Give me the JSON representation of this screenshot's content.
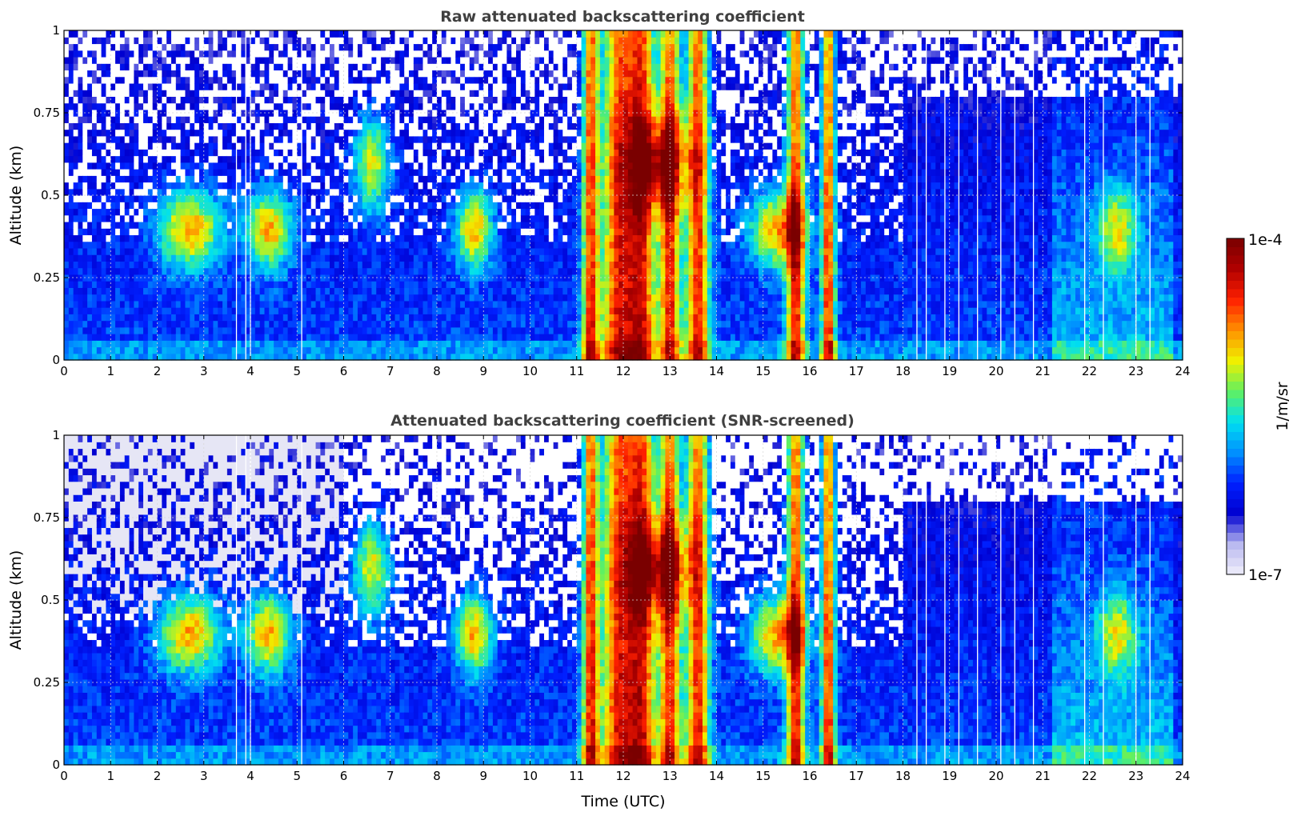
{
  "chart_data": [
    {
      "type": "heatmap",
      "title": "Raw attenuated backscattering coefficient",
      "xlabel": "",
      "ylabel": "Altitude (km)",
      "xlim": [
        0,
        24
      ],
      "ylim": [
        0,
        1
      ],
      "xticks": [
        "0",
        "1",
        "2",
        "3",
        "4",
        "5",
        "6",
        "7",
        "8",
        "9",
        "10",
        "11",
        "12",
        "13",
        "14",
        "15",
        "16",
        "17",
        "18",
        "19",
        "20",
        "21",
        "22",
        "23",
        "24"
      ],
      "yticks": [
        "0",
        "0.25",
        "0.5",
        "0.75",
        "1"
      ],
      "grid": true,
      "colorscale": "jet",
      "screened": false
    },
    {
      "type": "heatmap",
      "title": "Attenuated backscattering coefficient (SNR-screened)",
      "xlabel": "Time (UTC)",
      "ylabel": "Altitude (km)",
      "xlim": [
        0,
        24
      ],
      "ylim": [
        0,
        1
      ],
      "xticks": [
        "0",
        "1",
        "2",
        "3",
        "4",
        "5",
        "6",
        "7",
        "8",
        "9",
        "10",
        "11",
        "12",
        "13",
        "14",
        "15",
        "16",
        "17",
        "18",
        "19",
        "20",
        "21",
        "22",
        "23",
        "24"
      ],
      "yticks": [
        "0",
        "0.25",
        "0.5",
        "0.75",
        "1"
      ],
      "grid": true,
      "colorscale": "jet",
      "screened": true
    }
  ],
  "colorbar": {
    "min_label": "1e-7",
    "max_label": "1e-4",
    "unit_label": "1/m/sr",
    "scale": "log",
    "stops": [
      "#f0eefa",
      "#b8b8f0",
      "#0000d0",
      "#0020ff",
      "#0090ff",
      "#00e0f0",
      "#60f060",
      "#f0f000",
      "#ff9000",
      "#ff2000",
      "#b00000",
      "#7a0000"
    ]
  }
}
